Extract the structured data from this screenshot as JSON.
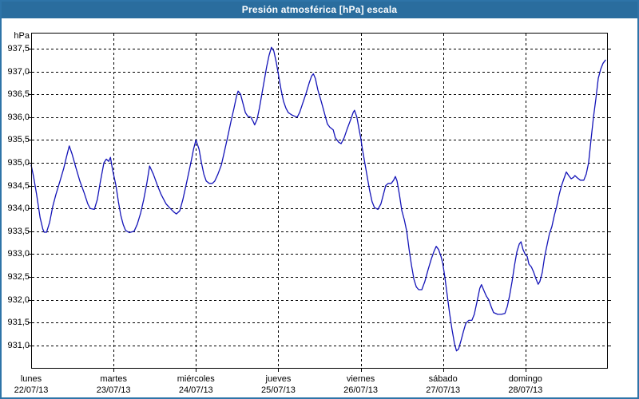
{
  "title": "Presión atmosférica [hPa] escala",
  "colors": {
    "titlebar_bg": "#2a6d9e",
    "titlebar_text": "#ffffff",
    "page_border": "#2e74a8",
    "line": "#1414b8",
    "grid": "#000000",
    "text": "#000000",
    "plot_bg": "#ffffff"
  },
  "y_axis": {
    "unit_label": "hPa",
    "tick_labels": [
      "937,5",
      "937,0",
      "936,5",
      "936,0",
      "935,5",
      "935,0",
      "934,5",
      "934,0",
      "933,5",
      "933,0",
      "932,5",
      "932,0",
      "931,5",
      "931,0"
    ],
    "tick_values": [
      937.5,
      937.0,
      936.5,
      936.0,
      935.5,
      935.0,
      934.5,
      934.0,
      933.5,
      933.0,
      932.5,
      932.0,
      931.5,
      931.0
    ]
  },
  "x_axis": {
    "days": [
      {
        "name": "lunes",
        "date": "22/07/13",
        "start_hour": 0
      },
      {
        "name": "martes",
        "date": "23/07/13",
        "start_hour": 24
      },
      {
        "name": "miércoles",
        "date": "24/07/13",
        "start_hour": 48
      },
      {
        "name": "jueves",
        "date": "25/07/13",
        "start_hour": 72
      },
      {
        "name": "viernes",
        "date": "26/07/13",
        "start_hour": 96
      },
      {
        "name": "sábado",
        "date": "27/07/13",
        "start_hour": 120
      },
      {
        "name": "domingo",
        "date": "28/07/13",
        "start_hour": 144
      }
    ],
    "boundary_hours": [
      24,
      48,
      72,
      96,
      120,
      144
    ]
  },
  "chart_data": {
    "type": "line",
    "title": "Presión atmosférica [hPa] escala",
    "ylabel": "hPa",
    "x_unit": "hours from lunes 22/07/13 00:00",
    "xlim": [
      0,
      168
    ],
    "ylim": [
      930.49,
      937.85
    ],
    "grid": "dashed",
    "legend": "none",
    "points": [
      [
        0,
        934.95
      ],
      [
        0.7,
        934.7
      ],
      [
        1.6,
        934.3
      ],
      [
        2.6,
        933.8
      ],
      [
        3.4,
        933.55
      ],
      [
        3.8,
        933.48
      ],
      [
        4.5,
        933.48
      ],
      [
        5.4,
        933.7
      ],
      [
        6.3,
        934.05
      ],
      [
        7.2,
        934.3
      ],
      [
        8.4,
        934.6
      ],
      [
        9.5,
        934.88
      ],
      [
        10.2,
        935.1
      ],
      [
        11.1,
        935.37
      ],
      [
        11.9,
        935.2
      ],
      [
        13,
        934.9
      ],
      [
        14.2,
        934.6
      ],
      [
        15.4,
        934.35
      ],
      [
        16.5,
        934.1
      ],
      [
        17.2,
        934.0
      ],
      [
        18.4,
        933.98
      ],
      [
        19.3,
        934.2
      ],
      [
        20.2,
        934.6
      ],
      [
        21.2,
        935.0
      ],
      [
        21.9,
        935.08
      ],
      [
        22.6,
        935.03
      ],
      [
        23.1,
        935.12
      ],
      [
        23.7,
        934.85
      ],
      [
        24.7,
        934.5
      ],
      [
        25.4,
        934.15
      ],
      [
        26.1,
        933.85
      ],
      [
        26.8,
        933.65
      ],
      [
        27.5,
        933.52
      ],
      [
        28.6,
        933.47
      ],
      [
        30,
        933.5
      ],
      [
        30.9,
        933.65
      ],
      [
        31.9,
        933.9
      ],
      [
        32.8,
        934.2
      ],
      [
        33.7,
        934.55
      ],
      [
        34.5,
        934.93
      ],
      [
        35.6,
        934.75
      ],
      [
        36.8,
        934.5
      ],
      [
        37.9,
        934.3
      ],
      [
        39.3,
        934.1
      ],
      [
        40.5,
        934.0
      ],
      [
        41.6,
        933.92
      ],
      [
        42.3,
        933.88
      ],
      [
        43.3,
        933.95
      ],
      [
        44.2,
        934.2
      ],
      [
        45.1,
        934.5
      ],
      [
        46.1,
        934.85
      ],
      [
        46.8,
        935.1
      ],
      [
        47.3,
        935.3
      ],
      [
        48,
        935.5
      ],
      [
        48.9,
        935.3
      ],
      [
        49.6,
        935.0
      ],
      [
        50.3,
        934.75
      ],
      [
        51,
        934.6
      ],
      [
        51.9,
        934.55
      ],
      [
        52.8,
        934.55
      ],
      [
        53.5,
        934.6
      ],
      [
        54.4,
        934.75
      ],
      [
        55.4,
        934.95
      ],
      [
        56.3,
        935.25
      ],
      [
        57.2,
        935.55
      ],
      [
        58.2,
        935.9
      ],
      [
        59.1,
        936.2
      ],
      [
        59.8,
        936.45
      ],
      [
        60.3,
        936.57
      ],
      [
        61,
        936.5
      ],
      [
        61.7,
        936.3
      ],
      [
        62.4,
        936.1
      ],
      [
        63.1,
        936.02
      ],
      [
        64,
        936.0
      ],
      [
        64.7,
        935.9
      ],
      [
        65.1,
        935.83
      ],
      [
        65.8,
        935.95
      ],
      [
        66.5,
        936.2
      ],
      [
        67.2,
        936.5
      ],
      [
        67.9,
        936.8
      ],
      [
        68.6,
        937.1
      ],
      [
        69.3,
        937.35
      ],
      [
        70,
        937.53
      ],
      [
        70.7,
        937.45
      ],
      [
        71.4,
        937.2
      ],
      [
        72.1,
        936.9
      ],
      [
        72.8,
        936.6
      ],
      [
        73.5,
        936.35
      ],
      [
        74.2,
        936.2
      ],
      [
        74.9,
        936.1
      ],
      [
        75.9,
        936.05
      ],
      [
        76.8,
        936.02
      ],
      [
        77.5,
        936.0
      ],
      [
        78.2,
        936.1
      ],
      [
        79.1,
        936.3
      ],
      [
        80,
        936.5
      ],
      [
        81,
        936.75
      ],
      [
        81.7,
        936.9
      ],
      [
        82.2,
        936.95
      ],
      [
        82.8,
        936.85
      ],
      [
        83.5,
        936.6
      ],
      [
        84.5,
        936.35
      ],
      [
        85.4,
        936.1
      ],
      [
        86.3,
        935.85
      ],
      [
        87,
        935.78
      ],
      [
        88,
        935.72
      ],
      [
        88.6,
        935.55
      ],
      [
        89.6,
        935.45
      ],
      [
        90.3,
        935.42
      ],
      [
        91.2,
        935.55
      ],
      [
        92.1,
        935.75
      ],
      [
        93.1,
        935.95
      ],
      [
        93.8,
        936.1
      ],
      [
        94.2,
        936.15
      ],
      [
        94.9,
        936.0
      ],
      [
        95.6,
        935.7
      ],
      [
        96,
        935.55
      ],
      [
        96.5,
        935.3
      ],
      [
        97.2,
        935.0
      ],
      [
        97.9,
        934.7
      ],
      [
        98.6,
        934.4
      ],
      [
        99.3,
        934.15
      ],
      [
        100,
        934.02
      ],
      [
        101,
        933.98
      ],
      [
        101.9,
        934.1
      ],
      [
        102.6,
        934.3
      ],
      [
        103.3,
        934.5
      ],
      [
        104,
        934.55
      ],
      [
        104.9,
        934.55
      ],
      [
        105.6,
        934.62
      ],
      [
        106.1,
        934.7
      ],
      [
        106.6,
        934.6
      ],
      [
        107.3,
        934.3
      ],
      [
        108,
        933.95
      ],
      [
        108.7,
        933.75
      ],
      [
        109.4,
        933.5
      ],
      [
        110.1,
        933.1
      ],
      [
        110.8,
        932.75
      ],
      [
        111.5,
        932.45
      ],
      [
        112.2,
        932.28
      ],
      [
        112.9,
        932.22
      ],
      [
        113.8,
        932.22
      ],
      [
        114.7,
        932.4
      ],
      [
        115.6,
        932.65
      ],
      [
        116.6,
        932.9
      ],
      [
        117.3,
        933.05
      ],
      [
        118,
        933.17
      ],
      [
        118.7,
        933.1
      ],
      [
        119.4,
        932.95
      ],
      [
        119.9,
        932.8
      ],
      [
        120.5,
        932.5
      ],
      [
        121.2,
        932.1
      ],
      [
        121.9,
        931.7
      ],
      [
        122.6,
        931.35
      ],
      [
        123.3,
        931.05
      ],
      [
        123.9,
        930.88
      ],
      [
        124.5,
        930.92
      ],
      [
        125.2,
        931.1
      ],
      [
        125.9,
        931.3
      ],
      [
        126.6,
        931.48
      ],
      [
        127.5,
        931.55
      ],
      [
        128.4,
        931.55
      ],
      [
        129.1,
        931.68
      ],
      [
        130,
        932.0
      ],
      [
        130.7,
        932.25
      ],
      [
        131.2,
        932.33
      ],
      [
        131.9,
        932.2
      ],
      [
        132.6,
        932.08
      ],
      [
        133.3,
        932.0
      ],
      [
        134,
        931.85
      ],
      [
        134.7,
        931.72
      ],
      [
        135.9,
        931.68
      ],
      [
        137,
        931.68
      ],
      [
        138,
        931.7
      ],
      [
        138.7,
        931.85
      ],
      [
        139.4,
        932.1
      ],
      [
        140.1,
        932.4
      ],
      [
        140.8,
        932.75
      ],
      [
        141.5,
        933.05
      ],
      [
        142.2,
        933.22
      ],
      [
        142.7,
        933.27
      ],
      [
        143.3,
        933.1
      ],
      [
        143.9,
        933.0
      ],
      [
        144.5,
        932.95
      ],
      [
        145,
        932.78
      ],
      [
        145.7,
        932.72
      ],
      [
        146.4,
        932.6
      ],
      [
        147.1,
        932.45
      ],
      [
        147.7,
        932.34
      ],
      [
        148.2,
        932.4
      ],
      [
        148.9,
        932.6
      ],
      [
        149.6,
        932.95
      ],
      [
        150.3,
        933.2
      ],
      [
        151,
        933.45
      ],
      [
        151.7,
        933.6
      ],
      [
        152.4,
        933.85
      ],
      [
        153.1,
        934.05
      ],
      [
        153.8,
        934.3
      ],
      [
        154.5,
        934.5
      ],
      [
        155.2,
        934.65
      ],
      [
        155.9,
        934.8
      ],
      [
        156.6,
        934.72
      ],
      [
        157.3,
        934.65
      ],
      [
        158,
        934.68
      ],
      [
        158.4,
        934.72
      ],
      [
        159.1,
        934.67
      ],
      [
        160,
        934.62
      ],
      [
        161,
        934.62
      ],
      [
        161.7,
        934.75
      ],
      [
        162.4,
        935.0
      ],
      [
        163.1,
        935.5
      ],
      [
        163.8,
        936.0
      ],
      [
        164.5,
        936.4
      ],
      [
        165.2,
        936.85
      ],
      [
        165.9,
        937.05
      ],
      [
        166.6,
        937.18
      ],
      [
        167.3,
        937.25
      ]
    ]
  }
}
